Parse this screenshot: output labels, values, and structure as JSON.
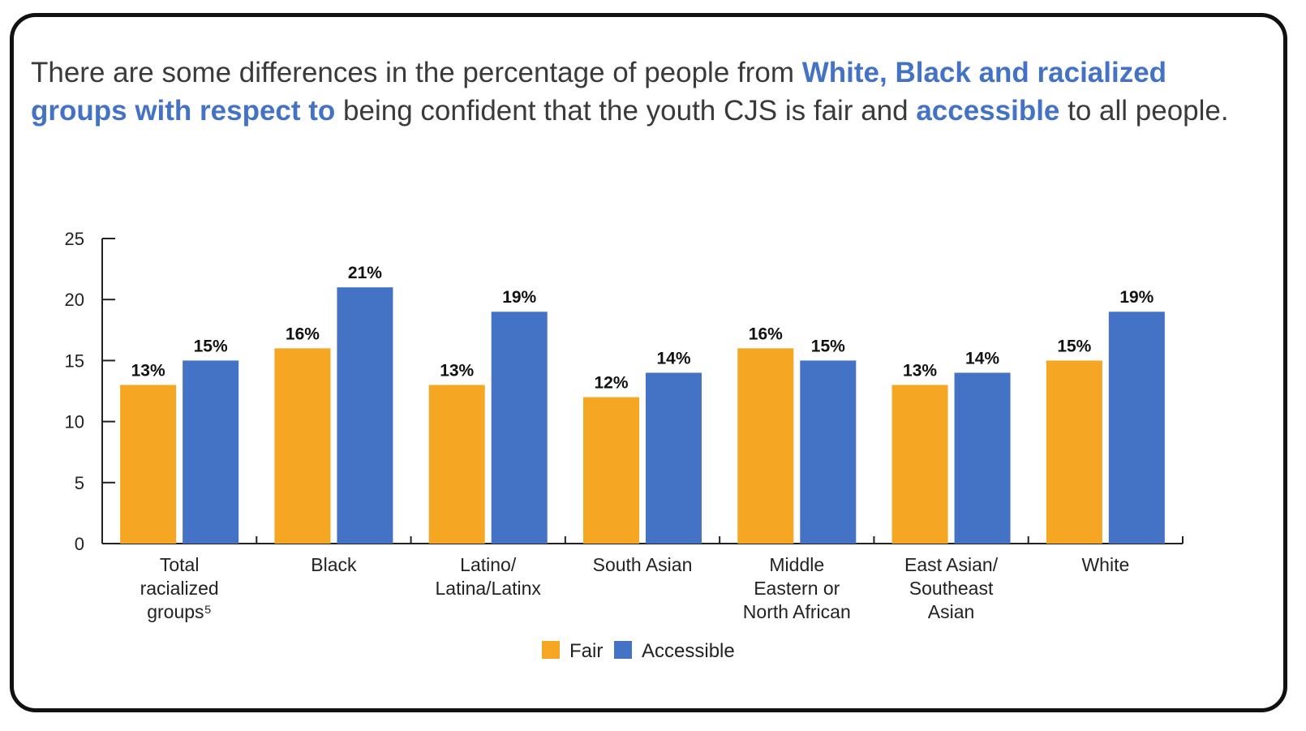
{
  "headline": {
    "parts": [
      {
        "text": "There are some differences in the percentage of people from ",
        "highlight": false
      },
      {
        "text": "White, Black and racialized groups with respect to",
        "highlight": true
      },
      {
        "text": " being confident that the youth CJS is fair and ",
        "highlight": false
      },
      {
        "text": "accessible",
        "highlight": true
      },
      {
        "text": " to all people.",
        "highlight": false
      }
    ]
  },
  "colors": {
    "fair": "#f5a623",
    "accessible": "#4472c4",
    "highlight": "#4472c4",
    "axis": "#222222"
  },
  "chart_data": {
    "type": "bar",
    "categories": [
      [
        "Total",
        "racialized",
        "groups⁵"
      ],
      [
        "Black"
      ],
      [
        "Latino/",
        "Latina/Latinx"
      ],
      [
        "South Asian"
      ],
      [
        "Middle",
        "Eastern or",
        "North African"
      ],
      [
        "East Asian/",
        "Southeast",
        "Asian"
      ],
      [
        "White"
      ]
    ],
    "series": [
      {
        "name": "Fair",
        "values": [
          13,
          16,
          13,
          12,
          16,
          13,
          15
        ],
        "labels": [
          "13%",
          "16%",
          "13%",
          "12%",
          "16%",
          "13%",
          "15%"
        ]
      },
      {
        "name": "Accessible",
        "values": [
          15,
          21,
          19,
          14,
          15,
          14,
          19
        ],
        "labels": [
          "15%",
          "21%",
          "19%",
          "14%",
          "15%",
          "14%",
          "19%"
        ]
      }
    ],
    "yticks": [
      0,
      5,
      10,
      15,
      20,
      25
    ],
    "ylim": [
      0,
      25
    ],
    "legend_position": "bottom-center",
    "grid": false
  }
}
